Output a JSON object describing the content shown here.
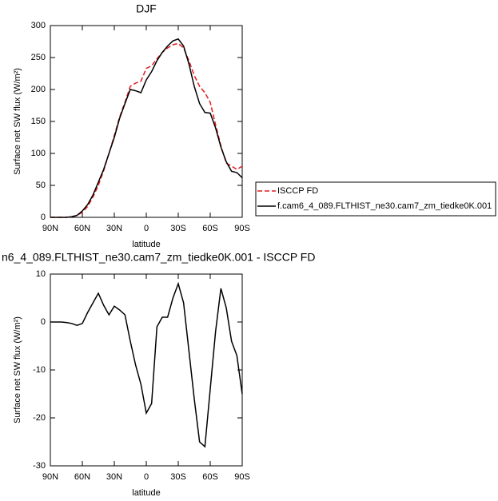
{
  "chart_data": [
    {
      "type": "line",
      "title": "DJF",
      "x_label": "latitude",
      "y_label": "Surface net SW flux (W/m²)",
      "x": [
        90,
        85,
        80,
        75,
        70,
        65,
        60,
        55,
        50,
        45,
        40,
        35,
        30,
        25,
        20,
        15,
        10,
        5,
        0,
        -5,
        -10,
        -15,
        -20,
        -25,
        -30,
        -35,
        -40,
        -45,
        -50,
        -55,
        -60,
        -65,
        -70,
        -75,
        -80,
        -85,
        -90
      ],
      "series": [
        {
          "name": "ISCCP FD",
          "color": "#e41a1c",
          "linestyle": "dashed",
          "values": [
            0,
            0,
            0,
            0,
            1,
            3,
            8,
            17,
            32,
            50,
            73,
            100,
            128,
            157,
            180,
            205,
            210,
            213,
            233,
            237,
            248,
            258,
            265,
            270,
            272,
            265,
            245,
            222,
            205,
            195,
            180,
            145,
            112,
            85,
            80,
            75,
            80
          ]
        },
        {
          "name": "f.cam6_4_089.FLTHIST_ne30.cam7_zm_tiedke0K.001",
          "color": "#000000",
          "linestyle": "solid",
          "values": [
            0,
            0,
            0,
            0,
            1,
            3,
            10,
            20,
            35,
            55,
            75,
            100,
            125,
            155,
            178,
            200,
            198,
            195,
            215,
            228,
            245,
            258,
            268,
            276,
            279,
            268,
            240,
            205,
            178,
            164,
            163,
            140,
            110,
            87,
            72,
            70,
            62
          ]
        }
      ],
      "xlim": [
        90,
        -90
      ],
      "xticks": [
        {
          "value": 90,
          "label": "90N"
        },
        {
          "value": 60,
          "label": "60N"
        },
        {
          "value": 30,
          "label": "30N"
        },
        0,
        {
          "value": -30,
          "label": "30S"
        },
        {
          "value": -60,
          "label": "60S"
        },
        {
          "value": -90,
          "label": "90S"
        }
      ],
      "ylim": [
        0,
        300
      ],
      "yticks": [
        0,
        50,
        100,
        150,
        200,
        250,
        300
      ],
      "legend_position": "right"
    },
    {
      "type": "line",
      "title": "n6_4_089.FLTHIST_ne30.cam7_zm_tiedke0K.001 - ISCCP FD",
      "x_label": "latitude",
      "y_label": "Surface net SW flux (W/m²)",
      "x": [
        90,
        85,
        80,
        75,
        70,
        65,
        60,
        55,
        50,
        45,
        40,
        35,
        30,
        25,
        20,
        15,
        10,
        5,
        0,
        -5,
        -10,
        -15,
        -20,
        -25,
        -30,
        -35,
        -40,
        -45,
        -50,
        -55,
        -60,
        -65,
        -70,
        -75,
        -80,
        -85,
        -90
      ],
      "series": [
        {
          "color": "#000000",
          "linestyle": "solid",
          "values": [
            0,
            0,
            0,
            -0.1,
            -0.3,
            -0.7,
            -0.3,
            2,
            4,
            6,
            3.5,
            1.5,
            3.3,
            2.5,
            1.5,
            -4,
            -9,
            -13,
            -19,
            -17,
            -1,
            1,
            1,
            5,
            8,
            4,
            -6,
            -16,
            -25,
            -26,
            -14,
            -2,
            7,
            3,
            -4,
            -7,
            -15
          ]
        }
      ],
      "xlim": [
        90,
        -90
      ],
      "xticks": [
        {
          "value": 90,
          "label": "90N"
        },
        {
          "value": 60,
          "label": "60N"
        },
        {
          "value": 30,
          "label": "30N"
        },
        0,
        {
          "value": -30,
          "label": "30S"
        },
        {
          "value": -60,
          "label": "60S"
        },
        {
          "value": -90,
          "label": "90S"
        }
      ],
      "ylim": [
        -30,
        10
      ],
      "yticks": [
        -30,
        -20,
        -10,
        0,
        10
      ]
    }
  ]
}
